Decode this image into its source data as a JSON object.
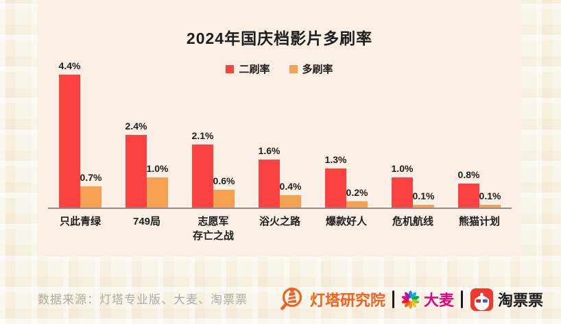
{
  "title": "2024年国庆档影片多刷率",
  "legend": [
    {
      "label": "二刷率",
      "color": "#FA4340"
    },
    {
      "label": "多刷率",
      "color": "#F5A153"
    }
  ],
  "chart_data": {
    "type": "bar",
    "title": "2024年国庆档影片多刷率",
    "categories": [
      "只此青绿",
      "749局",
      "志愿军存亡之战",
      "浴火之路",
      "爆款好人",
      "危机航线",
      "熊猫计划"
    ],
    "categories_display": [
      "只此青绿",
      "749局",
      "志愿军\n存亡之战",
      "浴火之路",
      "爆款好人",
      "危机航线",
      "熊猫计划"
    ],
    "series": [
      {
        "name": "二刷率",
        "color": "#FA4340",
        "values": [
          4.4,
          2.4,
          2.1,
          1.6,
          1.3,
          1.0,
          0.8
        ]
      },
      {
        "name": "多刷率",
        "color": "#F5A153",
        "values": [
          0.7,
          1.0,
          0.6,
          0.4,
          0.2,
          0.1,
          0.1
        ]
      }
    ],
    "value_suffix": "%",
    "value_labels": true,
    "xlabel": "",
    "ylabel": "",
    "ylim": [
      0,
      5
    ],
    "y_axis_visible": false,
    "grid": false,
    "legend_position": "top"
  },
  "footer": {
    "source_text": "数据来源：灯塔专业版、大麦、淘票票",
    "logos": [
      {
        "name": "dengta-research",
        "label": "灯塔研究院",
        "color": "#F4611C"
      },
      {
        "name": "damai",
        "label": "大麦",
        "color": "#E5017E"
      },
      {
        "name": "taopiaopiao",
        "label": "淘票票",
        "color": "#1A1A1A"
      }
    ]
  },
  "colors": {
    "card_background": "#FCEFE5",
    "page_background": "#FAF5EA",
    "axis": "#8E8E8E",
    "text": "#1D1D1D",
    "source_text": "#AEA9A3"
  }
}
